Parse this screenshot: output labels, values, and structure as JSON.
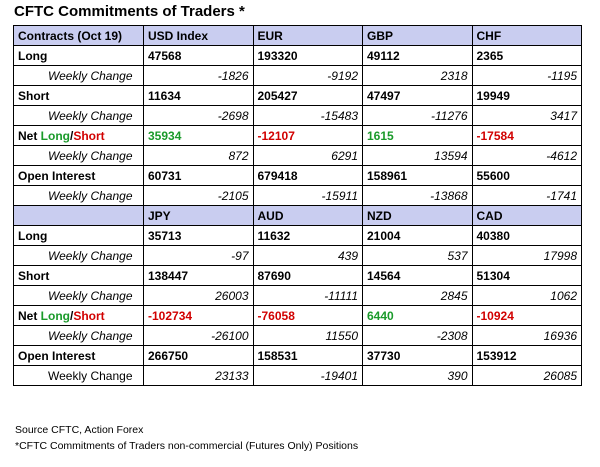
{
  "title": "CFTC Commitments of Traders *",
  "labels": {
    "contracts": "Contracts (Oct 19)",
    "long": "Long",
    "short": "Short",
    "net_prefix": "Net ",
    "net_long": "Long",
    "net_slash": "/",
    "net_short": "Short",
    "open_interest": "Open Interest",
    "weekly_change": "Weekly Change"
  },
  "sections": [
    {
      "currencies": [
        "USD Index",
        "EUR",
        "GBP",
        "CHF"
      ],
      "long": [
        "47568",
        "193320",
        "49112",
        "2365"
      ],
      "long_change": [
        "-1826",
        "-9192",
        "2318",
        "-1195"
      ],
      "short": [
        "11634",
        "205427",
        "47497",
        "19949"
      ],
      "short_change": [
        "-2698",
        "-15483",
        "-11276",
        "3417"
      ],
      "net": [
        "35934",
        "-12107",
        "1615",
        "-17584"
      ],
      "net_color": [
        "pos",
        "neg",
        "pos",
        "neg"
      ],
      "net_change": [
        "872",
        "6291",
        "13594",
        "-4612"
      ],
      "oi": [
        "60731",
        "679418",
        "158961",
        "55600"
      ],
      "oi_change": [
        "-2105",
        "-15911",
        "-13868",
        "-1741"
      ]
    },
    {
      "currencies": [
        "JPY",
        "AUD",
        "NZD",
        "CAD"
      ],
      "long": [
        "35713",
        "11632",
        "21004",
        "40380"
      ],
      "long_change": [
        "-97",
        "439",
        "537",
        "17998"
      ],
      "short": [
        "138447",
        "87690",
        "14564",
        "51304"
      ],
      "short_change": [
        "26003",
        "-11111",
        "2845",
        "1062"
      ],
      "net": [
        "-102734",
        "-76058",
        "6440",
        "-10924"
      ],
      "net_color": [
        "neg",
        "neg",
        "pos",
        "neg"
      ],
      "net_change": [
        "-26100",
        "11550",
        "-2308",
        "16936"
      ],
      "oi": [
        "266750",
        "158531",
        "37730",
        "153912"
      ],
      "oi_change": [
        "23133",
        "-19401",
        "390",
        "26085"
      ]
    }
  ],
  "footer": {
    "source": "Source CFTC, Action Forex",
    "note": "*CFTC Commitments of Traders non-commercial (Futures Only) Positions"
  },
  "colors": {
    "header_bg": "#c9cdf0",
    "positive": "#1a9a2a",
    "negative": "#d10000"
  }
}
